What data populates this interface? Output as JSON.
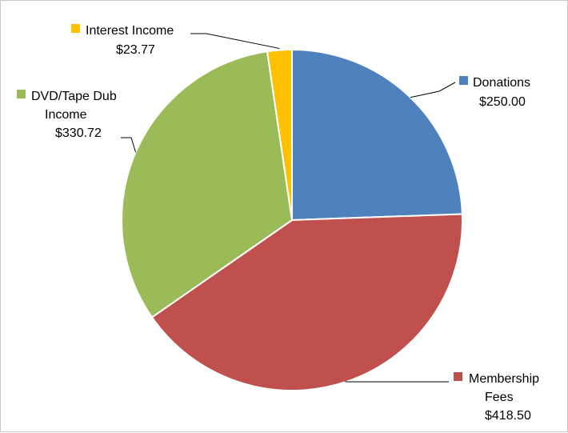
{
  "chart_data": {
    "type": "pie",
    "title": "",
    "currency_prefix": "$",
    "slices": [
      {
        "name": "Donations",
        "value": 250.0,
        "value_label": "$250.00",
        "color": "#4F81BD"
      },
      {
        "name": "Membership Fees",
        "value": 418.5,
        "value_label": "$418.50",
        "color": "#C0504D"
      },
      {
        "name": "DVD/Tape Dub Income",
        "value": 330.72,
        "value_label": "$330.72",
        "color": "#9BBB59"
      },
      {
        "name": "Interest Income",
        "value": 23.77,
        "value_label": "$23.77",
        "color": "#FFC000"
      }
    ],
    "legend": "none",
    "labels": "outside with leader lines"
  }
}
